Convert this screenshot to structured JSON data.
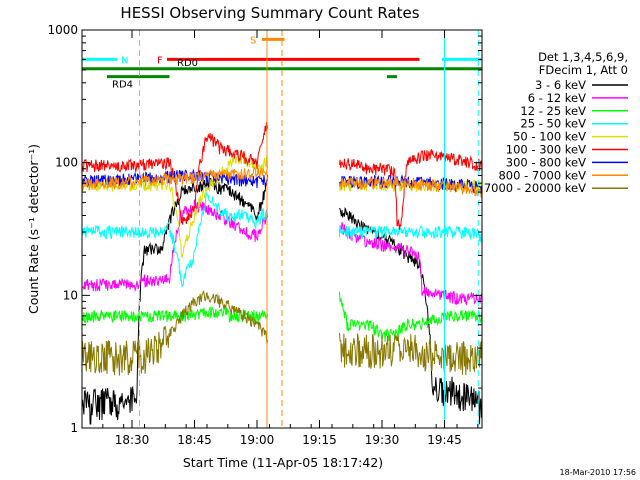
{
  "chart_data": {
    "type": "line",
    "title": "HESSI Observing Summary Count Rates",
    "xlabel": "Start Time (11-Apr-05 18:17:42)",
    "ylabel": "Count Rate (s⁻¹ detector⁻¹)",
    "x_unit": "minutes",
    "xlim": [
      18.3,
      19.9
    ],
    "ylim": [
      1,
      1000
    ],
    "y_scale": "log",
    "x_ticks": [
      "18:30",
      "18:45",
      "19:00",
      "19:15",
      "19:30",
      "19:45"
    ],
    "x_tick_values": [
      18.5,
      18.75,
      19.0,
      19.25,
      19.5,
      19.75
    ],
    "y_ticks": [
      "1",
      "10",
      "100",
      "1000"
    ],
    "y_tick_values": [
      1,
      10,
      100,
      1000
    ],
    "legend_header": [
      "Det 1,3,4,5,6,9,",
      "FDecim 1, Att 0"
    ],
    "legend_position": "right",
    "timestamp": "18-Mar-2010 17:56",
    "series": [
      {
        "name": "3 - 6 keV",
        "color": "#000000",
        "x": [
          18.3,
          18.52,
          18.55,
          18.62,
          18.7,
          18.8,
          18.9,
          18.95,
          19.0,
          19.02,
          19.04,
          19.33,
          19.4,
          19.45,
          19.5,
          19.55,
          19.6,
          19.65,
          19.7,
          19.75,
          19.8,
          19.85,
          19.9
        ],
        "y": [
          1.5,
          1.6,
          22,
          22,
          60,
          70,
          60,
          50,
          40,
          50,
          70,
          45,
          35,
          30,
          28,
          24,
          20,
          17,
          2.2,
          1.8,
          2.0,
          1.6,
          1.5
        ]
      },
      {
        "name": "6 - 12 keV",
        "color": "#ff00ff",
        "x": [
          18.3,
          18.4,
          18.5,
          18.55,
          18.62,
          18.65,
          18.7,
          18.75,
          18.8,
          18.85,
          18.9,
          18.95,
          19.0,
          19.02,
          19.04,
          19.33,
          19.4,
          19.45,
          19.5,
          19.55,
          19.6,
          19.65,
          19.66,
          19.7,
          19.75,
          19.8,
          19.85,
          19.9
        ],
        "y": [
          12,
          12,
          12,
          13,
          13,
          13,
          42,
          48,
          45,
          40,
          35,
          30,
          28,
          34,
          40,
          33,
          27,
          25,
          24,
          23,
          22,
          20,
          11,
          10,
          10,
          9.5,
          9.5,
          9.5
        ]
      },
      {
        "name": "12 - 25 keV",
        "color": "#00ff00",
        "x": [
          18.3,
          18.4,
          18.5,
          18.55,
          18.6,
          18.65,
          18.7,
          18.75,
          18.8,
          18.85,
          18.9,
          18.95,
          19.0,
          19.02,
          19.04,
          19.33,
          19.36,
          19.4,
          19.45,
          19.5,
          19.55,
          19.6,
          19.65,
          19.7,
          19.75,
          19.8,
          19.85,
          19.9
        ],
        "y": [
          7,
          7,
          7,
          7,
          7,
          7,
          7,
          7,
          7.5,
          7.5,
          7,
          7,
          7,
          7,
          7,
          10,
          6,
          6,
          6,
          5,
          5,
          6,
          6,
          6.5,
          7,
          7,
          7,
          7
        ]
      },
      {
        "name": "25 - 50 keV",
        "color": "#00ffff",
        "x": [
          18.3,
          18.4,
          18.5,
          18.6,
          18.62,
          18.65,
          18.7,
          18.75,
          18.8,
          18.85,
          18.9,
          18.95,
          19.0,
          19.02,
          19.04,
          19.33,
          19.4,
          19.45,
          19.5,
          19.55,
          19.6,
          19.65,
          19.7,
          19.75,
          19.8,
          19.85,
          19.9
        ],
        "y": [
          30,
          30,
          30,
          30,
          30,
          32,
          12,
          20,
          55,
          45,
          38,
          42,
          35,
          40,
          42,
          30,
          30,
          30,
          30,
          30,
          30,
          30,
          30,
          30,
          30,
          29,
          28
        ]
      },
      {
        "name": "50 - 100 keV",
        "color": "#dddd00",
        "x": [
          18.3,
          18.4,
          18.5,
          18.6,
          18.65,
          18.7,
          18.75,
          18.8,
          18.85,
          18.9,
          18.95,
          19.0,
          19.02,
          19.04,
          19.33,
          19.4,
          19.5,
          19.6,
          19.7,
          19.8,
          19.9
        ],
        "y": [
          68,
          68,
          68,
          68,
          70,
          18,
          40,
          65,
          80,
          100,
          110,
          90,
          95,
          100,
          68,
          68,
          68,
          68,
          68,
          68,
          66
        ]
      },
      {
        "name": "100 - 300 keV",
        "color": "#ff0000",
        "x": [
          18.3,
          18.4,
          18.5,
          18.6,
          18.65,
          18.7,
          18.75,
          18.8,
          18.85,
          18.9,
          18.95,
          19.0,
          19.02,
          19.04,
          19.3,
          19.33,
          19.4,
          19.45,
          19.5,
          19.55,
          19.56,
          19.58,
          19.6,
          19.65,
          19.7,
          19.75,
          19.8,
          19.85,
          19.9
        ],
        "y": [
          95,
          95,
          95,
          100,
          100,
          35,
          45,
          160,
          130,
          120,
          110,
          100,
          140,
          200,
          150,
          100,
          95,
          90,
          90,
          85,
          35,
          35,
          100,
          110,
          115,
          110,
          105,
          100,
          95
        ]
      },
      {
        "name": "300 - 800 keV",
        "color": "#0000ff",
        "x": [
          18.3,
          18.4,
          18.5,
          18.6,
          18.7,
          18.8,
          18.9,
          19.0,
          19.04,
          19.33,
          19.4,
          19.5,
          19.6,
          19.7,
          19.8,
          19.9
        ],
        "y": [
          72,
          74,
          76,
          78,
          80,
          78,
          75,
          72,
          75,
          72,
          72,
          72,
          72,
          70,
          68,
          65
        ]
      },
      {
        "name": "800 - 7000 keV",
        "color": "#ff8800",
        "x": [
          18.3,
          18.4,
          18.5,
          18.6,
          18.7,
          18.8,
          18.9,
          19.0,
          19.04,
          19.33,
          19.4,
          19.5,
          19.6,
          19.7,
          19.8,
          19.9
        ],
        "y": [
          68,
          70,
          72,
          74,
          76,
          80,
          82,
          84,
          86,
          70,
          70,
          70,
          70,
          68,
          64,
          60
        ]
      },
      {
        "name": "7000 - 20000 keV",
        "color": "#887700",
        "x": [
          18.3,
          18.4,
          18.5,
          18.55,
          18.6,
          18.65,
          18.7,
          18.75,
          18.8,
          18.85,
          18.9,
          18.95,
          19.0,
          19.04,
          19.33,
          19.4,
          19.5,
          19.55,
          19.6,
          19.65,
          19.7,
          19.75,
          19.8,
          19.85,
          19.9
        ],
        "y": [
          3.5,
          3.5,
          3.5,
          3.6,
          4,
          5,
          7,
          9,
          10,
          9,
          8,
          7,
          6,
          5,
          4,
          4,
          4,
          4,
          4,
          4,
          3.5,
          3.5,
          3.5,
          3.5,
          3.5
        ]
      }
    ],
    "bars": [
      {
        "label": "N",
        "color": "#00ffff",
        "value": 600,
        "segments": [
          [
            18.3,
            18.44
          ],
          [
            19.74,
            19.9
          ]
        ]
      },
      {
        "label": "S",
        "color": "#ff8800",
        "value": 850,
        "segments": [
          [
            19.02,
            19.11
          ]
        ]
      },
      {
        "label": "F",
        "color": "#ff0000",
        "value": 600,
        "segments": [
          [
            18.64,
            19.65
          ]
        ]
      },
      {
        "label": "RD0",
        "color": "#008800",
        "value": 510,
        "segments": [
          [
            18.3,
            19.9
          ]
        ]
      },
      {
        "label": "RD4",
        "color": "#008800",
        "value": 445,
        "segments": [
          [
            18.4,
            18.65
          ],
          [
            19.52,
            19.56
          ]
        ]
      }
    ],
    "vlines": [
      {
        "x": 18.3,
        "color": "#00ffff",
        "style": "solid"
      },
      {
        "x": 18.53,
        "color": "#00ffff",
        "style": "dashed"
      },
      {
        "x": 19.04,
        "color": "#ff8800",
        "style": "solid"
      },
      {
        "x": 19.1,
        "color": "#ff8800",
        "style": "dashed"
      },
      {
        "x": 19.75,
        "color": "#00ffff",
        "style": "solid"
      },
      {
        "x": 19.885,
        "color": "#00ffff",
        "style": "dashed"
      }
    ]
  }
}
